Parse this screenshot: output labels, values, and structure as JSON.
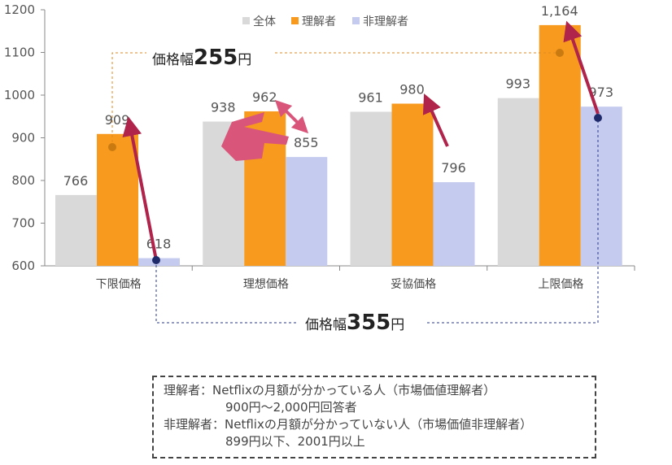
{
  "chart_data": {
    "type": "bar",
    "categories": [
      "下限価格",
      "理想価格",
      "妥協価格",
      "上限価格"
    ],
    "series": [
      {
        "name": "全体",
        "color": "#d9d9d9",
        "values": [
          766,
          938,
          961,
          993
        ],
        "labels": [
          "766",
          "938",
          "961",
          "993"
        ]
      },
      {
        "name": "理解者",
        "color": "#f79a1e",
        "values": [
          909,
          962,
          980,
          1164
        ],
        "labels": [
          "909",
          "962",
          "980",
          "1,164"
        ]
      },
      {
        "name": "非理解者",
        "color": "#c5cbef",
        "values": [
          618,
          855,
          796,
          973
        ],
        "labels": [
          "618",
          "855",
          "796",
          "973"
        ]
      }
    ],
    "yticks": [
      600,
      700,
      800,
      900,
      1000,
      1100,
      1200
    ],
    "ylim": [
      600,
      1200
    ],
    "legend": "top-right",
    "annotations": {
      "range_understand": {
        "prefix": "価格幅",
        "value": "255",
        "suffix": "円"
      },
      "range_nonunderstand": {
        "prefix": "価格幅",
        "value": "355",
        "suffix": "円"
      }
    }
  },
  "note": {
    "line1": "理解者：Netflixの月額が分かっている人（市場価値理解者）",
    "line2": "900円～2,000円回答者",
    "line3": "非理解者：Netflixの月額が分かっていない人（市場価値非理解者）",
    "line4": "899円以下、2001円以上"
  }
}
